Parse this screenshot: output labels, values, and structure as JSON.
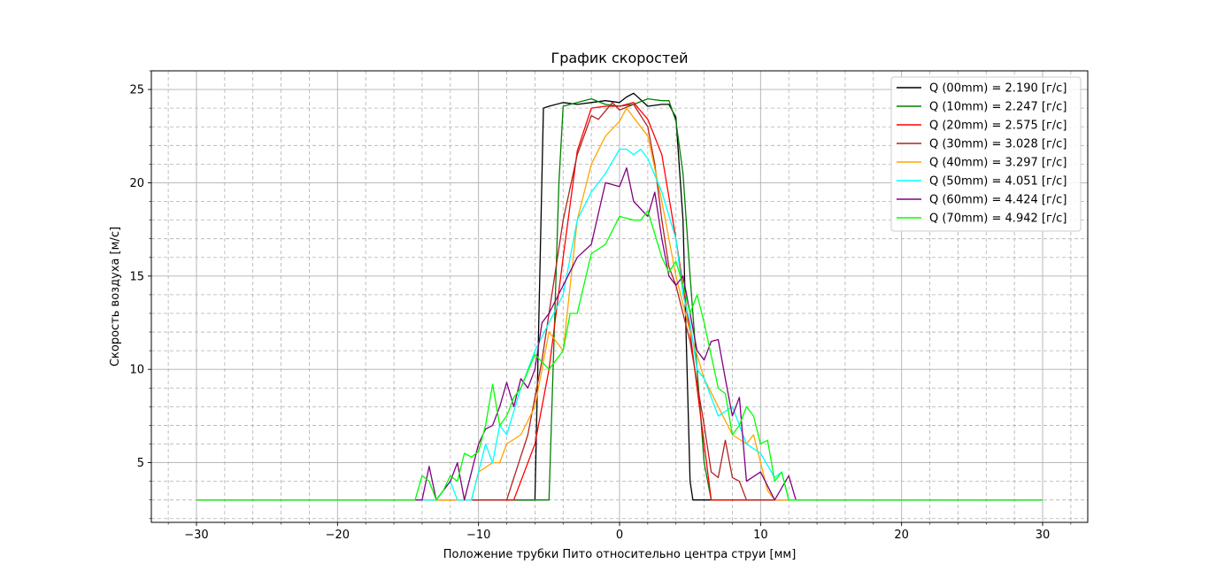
{
  "chart_data": {
    "type": "line",
    "title": "График скоростей",
    "xlabel": "Положение трубки Пито относительно центра струи [мм]",
    "ylabel": "Скорость воздуха [м/с]",
    "xlim": [
      -33.2,
      33.2
    ],
    "ylim": [
      1.8,
      26.0
    ],
    "xticks": [
      -30,
      -20,
      -10,
      0,
      10,
      20,
      30
    ],
    "xtick_labels": [
      "−30",
      "−20",
      "−10",
      "0",
      "10",
      "20",
      "30"
    ],
    "yticks": [
      5,
      10,
      15,
      20,
      25
    ],
    "ytick_labels": [
      "5",
      "10",
      "15",
      "20",
      "25"
    ],
    "grid": true,
    "legend_position": "top-right",
    "series": [
      {
        "name": "Q (00mm) = 2.190 [г/с]",
        "color": "#000000",
        "points": [
          [
            -30,
            3
          ],
          [
            -6,
            3
          ],
          [
            -5.4,
            24
          ],
          [
            -5,
            24.1
          ],
          [
            -4,
            24.3
          ],
          [
            -3,
            24.2
          ],
          [
            -2,
            24.3
          ],
          [
            -1,
            24.4
          ],
          [
            0,
            24.3
          ],
          [
            0.5,
            24.6
          ],
          [
            1,
            24.8
          ],
          [
            2,
            24.1
          ],
          [
            3,
            24.2
          ],
          [
            3.5,
            24.2
          ],
          [
            4,
            23.5
          ],
          [
            4.5,
            18
          ],
          [
            5,
            4
          ],
          [
            5.2,
            3
          ],
          [
            30,
            3
          ]
        ]
      },
      {
        "name": "Q (10mm) = 2.247 [г/с]",
        "color": "#008000",
        "points": [
          [
            -30,
            3
          ],
          [
            -5.2,
            3
          ],
          [
            -5,
            3
          ],
          [
            -4.3,
            20
          ],
          [
            -4,
            24.1
          ],
          [
            -3,
            24.3
          ],
          [
            -2,
            24.5
          ],
          [
            -1,
            24.2
          ],
          [
            0,
            24.1
          ],
          [
            1,
            24.2
          ],
          [
            2,
            24.5
          ],
          [
            3,
            24.4
          ],
          [
            3.5,
            24.4
          ],
          [
            4,
            23.3
          ],
          [
            4.5,
            20.5
          ],
          [
            5,
            15
          ],
          [
            5.5,
            10
          ],
          [
            6,
            5
          ],
          [
            6.5,
            3
          ],
          [
            30,
            3
          ]
        ]
      },
      {
        "name": "Q (20mm) = 2.575 [г/с]",
        "color": "#ff0000",
        "points": [
          [
            -30,
            3
          ],
          [
            -7.5,
            3
          ],
          [
            -6,
            6
          ],
          [
            -5,
            10
          ],
          [
            -4,
            16
          ],
          [
            -3,
            21.7
          ],
          [
            -2,
            24
          ],
          [
            -1,
            24.1
          ],
          [
            0,
            24.1
          ],
          [
            1,
            24.3
          ],
          [
            2,
            23.4
          ],
          [
            3,
            21.5
          ],
          [
            4,
            17
          ],
          [
            5,
            12
          ],
          [
            5.5,
            9
          ],
          [
            6,
            6
          ],
          [
            6.5,
            3
          ],
          [
            30,
            3
          ]
        ]
      },
      {
        "name": "Q (30mm) = 3.028 [г/с]",
        "color": "#b22222",
        "points": [
          [
            -30,
            3
          ],
          [
            -8,
            3
          ],
          [
            -6.5,
            6.5
          ],
          [
            -5.5,
            10.5
          ],
          [
            -5,
            13
          ],
          [
            -4,
            18
          ],
          [
            -3,
            21.5
          ],
          [
            -2,
            23.6
          ],
          [
            -1.5,
            23.4
          ],
          [
            -0.5,
            24.3
          ],
          [
            0,
            23.9
          ],
          [
            1,
            24.2
          ],
          [
            2,
            23
          ],
          [
            2.5,
            21
          ],
          [
            3,
            18
          ],
          [
            3.5,
            15.5
          ],
          [
            4,
            14.5
          ],
          [
            5,
            11.5
          ],
          [
            6,
            7
          ],
          [
            6.5,
            4.5
          ],
          [
            7,
            4.2
          ],
          [
            7.5,
            6.2
          ],
          [
            8,
            4.2
          ],
          [
            8.5,
            4
          ],
          [
            9,
            3
          ],
          [
            30,
            3
          ]
        ]
      },
      {
        "name": "Q (40mm) = 3.297 [г/с]",
        "color": "#ffa500",
        "points": [
          [
            -30,
            3
          ],
          [
            -12,
            3
          ],
          [
            -10.5,
            3
          ],
          [
            -10,
            4.5
          ],
          [
            -9,
            5
          ],
          [
            -8.5,
            5
          ],
          [
            -8,
            6
          ],
          [
            -7,
            6.5
          ],
          [
            -6,
            8
          ],
          [
            -5,
            12
          ],
          [
            -4,
            11
          ],
          [
            -3,
            18
          ],
          [
            -2,
            21
          ],
          [
            -1,
            22.5
          ],
          [
            0,
            23.3
          ],
          [
            0.5,
            24
          ],
          [
            1,
            23.5
          ],
          [
            2,
            22.5
          ],
          [
            3,
            19
          ],
          [
            4,
            15
          ],
          [
            5,
            12
          ],
          [
            6,
            9.5
          ],
          [
            7,
            8
          ],
          [
            8,
            6.5
          ],
          [
            9,
            6
          ],
          [
            9.5,
            6.5
          ],
          [
            10,
            5
          ],
          [
            10.5,
            3.5
          ],
          [
            11,
            3
          ],
          [
            30,
            3
          ]
        ]
      },
      {
        "name": "Q (50mm) = 4.051 [г/с]",
        "color": "#00ffff",
        "points": [
          [
            -30,
            3
          ],
          [
            -13,
            3
          ],
          [
            -12,
            4
          ],
          [
            -11.5,
            3
          ],
          [
            -10.5,
            3
          ],
          [
            -10,
            4.5
          ],
          [
            -9.5,
            6
          ],
          [
            -9,
            5
          ],
          [
            -8.5,
            7
          ],
          [
            -8,
            6.5
          ],
          [
            -7,
            9
          ],
          [
            -6,
            11
          ],
          [
            -5,
            12.5
          ],
          [
            -4,
            14
          ],
          [
            -3,
            18
          ],
          [
            -2,
            19.5
          ],
          [
            -1,
            20.5
          ],
          [
            0,
            21.8
          ],
          [
            0.5,
            21.8
          ],
          [
            1,
            21.5
          ],
          [
            1.5,
            21.8
          ],
          [
            2,
            21.3
          ],
          [
            3,
            19.5
          ],
          [
            4,
            17
          ],
          [
            4.5,
            14
          ],
          [
            5,
            12.5
          ],
          [
            5.5,
            10
          ],
          [
            6,
            9.5
          ],
          [
            7,
            7.5
          ],
          [
            8,
            8
          ],
          [
            9,
            6
          ],
          [
            10,
            5.5
          ],
          [
            11,
            4.2
          ],
          [
            11.5,
            4.5
          ],
          [
            12,
            3
          ],
          [
            30,
            3
          ]
        ]
      },
      {
        "name": "Q (60mm) = 4.424 [г/с]",
        "color": "#800080",
        "points": [
          [
            -30,
            3
          ],
          [
            -14,
            3
          ],
          [
            -13.5,
            4.8
          ],
          [
            -13,
            3
          ],
          [
            -12,
            4
          ],
          [
            -11.5,
            5
          ],
          [
            -11,
            3
          ],
          [
            -10,
            6
          ],
          [
            -9.5,
            6.8
          ],
          [
            -9,
            7
          ],
          [
            -8.5,
            8
          ],
          [
            -8,
            9.3
          ],
          [
            -7.5,
            8
          ],
          [
            -7,
            9.5
          ],
          [
            -6.5,
            9
          ],
          [
            -6,
            10
          ],
          [
            -5.5,
            12.5
          ],
          [
            -5,
            13
          ],
          [
            -4,
            14.5
          ],
          [
            -3,
            16
          ],
          [
            -2,
            16.7
          ],
          [
            -1,
            20
          ],
          [
            0,
            19.8
          ],
          [
            0.5,
            20.8
          ],
          [
            1,
            19
          ],
          [
            2,
            18.2
          ],
          [
            2.5,
            19.5
          ],
          [
            3,
            17
          ],
          [
            3.5,
            15
          ],
          [
            4,
            14.5
          ],
          [
            4.5,
            15
          ],
          [
            5,
            13
          ],
          [
            5.5,
            11
          ],
          [
            6,
            10.5
          ],
          [
            6.5,
            11.5
          ],
          [
            7,
            11.6
          ],
          [
            7.5,
            9.5
          ],
          [
            8,
            7.5
          ],
          [
            8.5,
            8.5
          ],
          [
            9,
            4
          ],
          [
            10,
            4.5
          ],
          [
            11,
            3
          ],
          [
            12,
            4.3
          ],
          [
            12.5,
            3
          ],
          [
            30,
            3
          ]
        ]
      },
      {
        "name": "Q (70mm) = 4.942 [г/с]",
        "color": "#00ff00",
        "points": [
          [
            -30,
            3
          ],
          [
            -14.5,
            3
          ],
          [
            -14,
            4.3
          ],
          [
            -13.5,
            4
          ],
          [
            -13,
            3
          ],
          [
            -12.5,
            3.5
          ],
          [
            -12,
            4.3
          ],
          [
            -11.5,
            4
          ],
          [
            -11,
            5.5
          ],
          [
            -10.5,
            5.3
          ],
          [
            -10,
            5.6
          ],
          [
            -9.5,
            7
          ],
          [
            -9,
            9.2
          ],
          [
            -8.5,
            7
          ],
          [
            -8,
            7.5
          ],
          [
            -7.5,
            8.5
          ],
          [
            -7,
            9
          ],
          [
            -6,
            10.8
          ],
          [
            -5,
            10
          ],
          [
            -4,
            11
          ],
          [
            -3.5,
            13
          ],
          [
            -3,
            13
          ],
          [
            -2,
            16.2
          ],
          [
            -1,
            16.7
          ],
          [
            0,
            18.2
          ],
          [
            1,
            18
          ],
          [
            1.5,
            18
          ],
          [
            2,
            18.5
          ],
          [
            3,
            16
          ],
          [
            3.5,
            15.2
          ],
          [
            4,
            15.8
          ],
          [
            4.5,
            14.5
          ],
          [
            5,
            13
          ],
          [
            5.5,
            14
          ],
          [
            6,
            12.5
          ],
          [
            7,
            9
          ],
          [
            7.5,
            8.7
          ],
          [
            8,
            6.5
          ],
          [
            8.5,
            7
          ],
          [
            9,
            8
          ],
          [
            9.5,
            7.5
          ],
          [
            10,
            6
          ],
          [
            10.5,
            6.2
          ],
          [
            11,
            4
          ],
          [
            11.5,
            4.5
          ],
          [
            12,
            3
          ],
          [
            30,
            3
          ]
        ]
      }
    ]
  }
}
